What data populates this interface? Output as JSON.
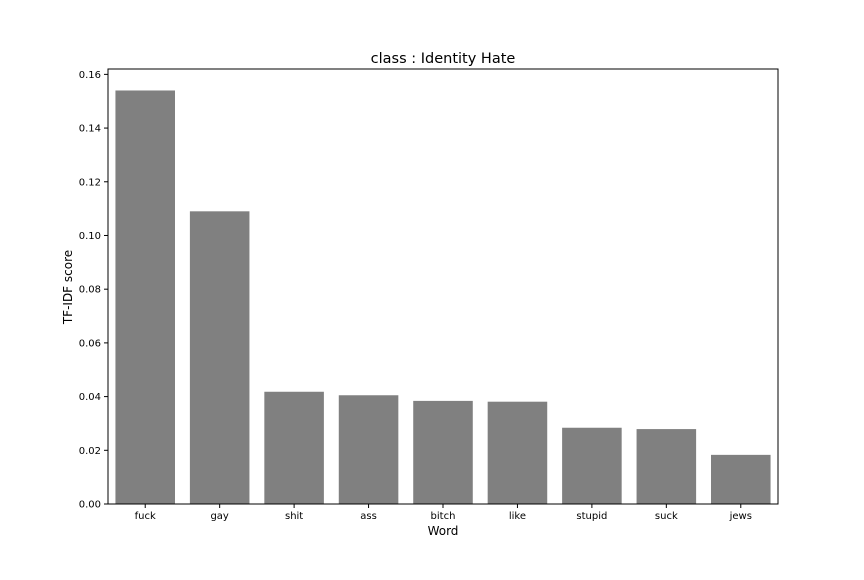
{
  "chart_data": {
    "type": "bar",
    "title": "class : Identity Hate",
    "xlabel": "Word",
    "ylabel": "TF-IDF score",
    "categories": [
      "fuck",
      "gay",
      "shit",
      "ass",
      "bitch",
      "like",
      "stupid",
      "suck",
      "jews"
    ],
    "values": [
      0.154,
      0.109,
      0.0418,
      0.0405,
      0.0384,
      0.0381,
      0.0284,
      0.0279,
      0.0183
    ],
    "ylim": [
      0,
      0.162
    ],
    "yticks": [
      "0.00",
      "0.02",
      "0.04",
      "0.06",
      "0.08",
      "0.10",
      "0.12",
      "0.14",
      "0.16"
    ],
    "grid": false,
    "bar_color": "#808080"
  }
}
